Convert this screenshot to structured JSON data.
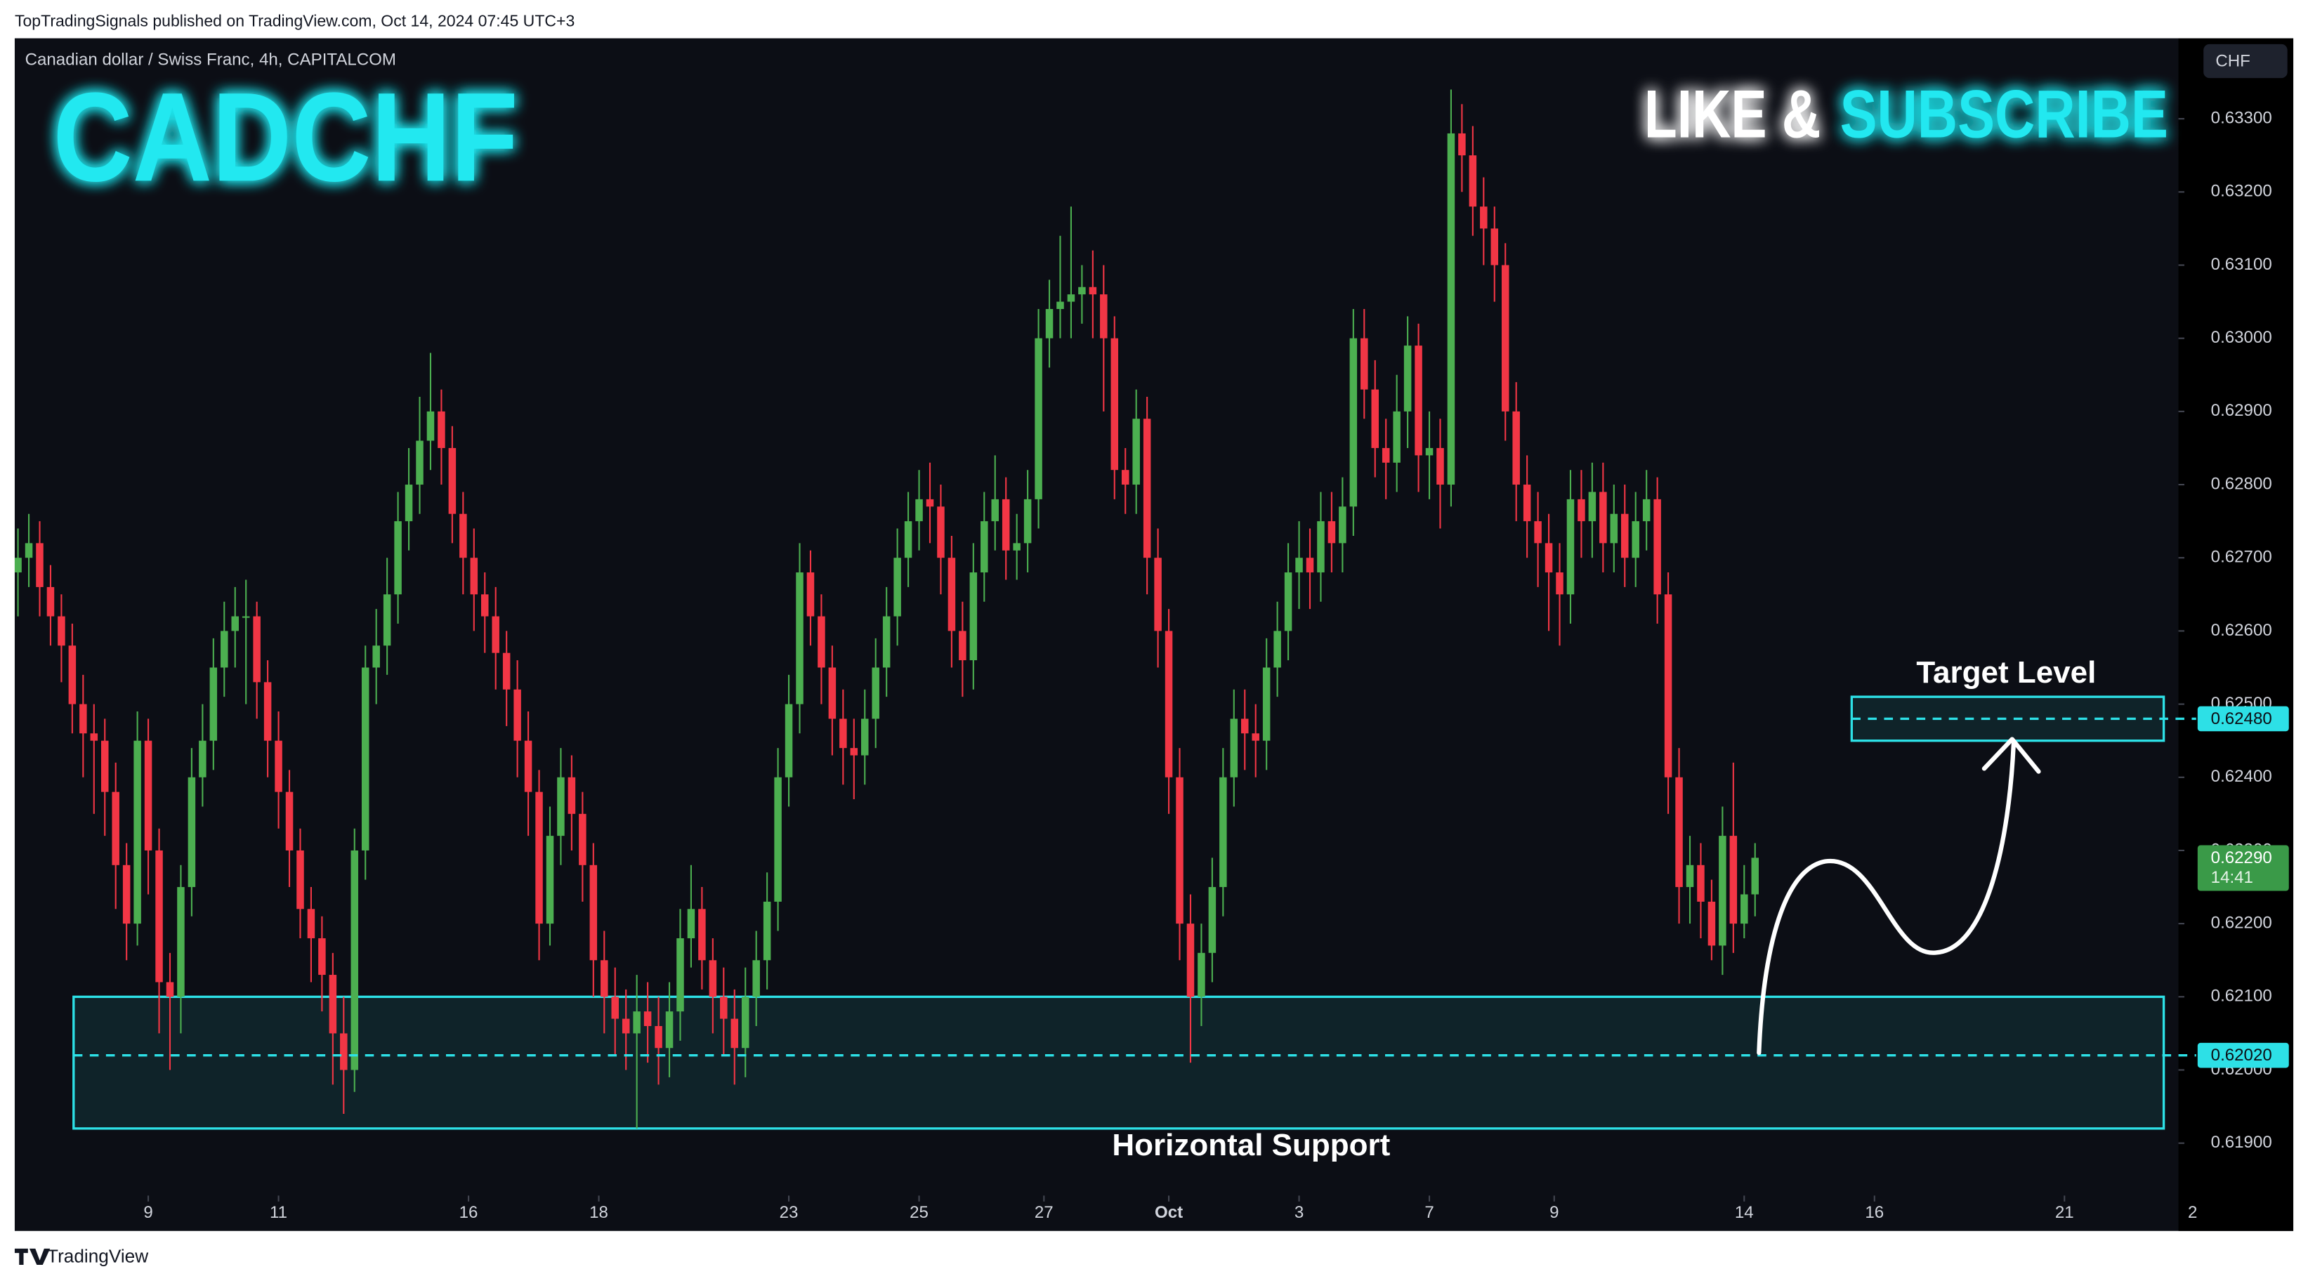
{
  "header": {
    "published": "TopTradingSignals published on TradingView.com, Oct 14, 2024 07:45 UTC+3",
    "footer": "TradingView"
  },
  "chart_data": {
    "type": "candlestick",
    "title": "CADCHF",
    "subtitle": "Canadian dollar / Swiss Franc, 4h, CAPITALCOM",
    "banner": [
      "LIKE &",
      "SUBSCRIBE"
    ],
    "currency": "CHF",
    "up_color": "#4caf50",
    "down_color": "#f23645",
    "zone_color": "#2de0e6",
    "opens": [
      0.6268,
      0.627,
      0.6272,
      0.6266,
      0.6262,
      0.6258,
      0.625,
      0.6246,
      0.6245,
      0.6238,
      0.6228,
      0.622,
      0.6245,
      0.623,
      0.6212,
      0.621,
      0.6225,
      0.624,
      0.6245,
      0.6255,
      0.626,
      0.6262,
      0.6262,
      0.6253,
      0.6245,
      0.6238,
      0.623,
      0.6222,
      0.6218,
      0.6213,
      0.6205,
      0.62,
      0.623,
      0.6255,
      0.6258,
      0.6265,
      0.6275,
      0.628,
      0.6286,
      0.629,
      0.6285,
      0.6276,
      0.627,
      0.6265,
      0.6262,
      0.6257,
      0.6252,
      0.6245,
      0.6238,
      0.622,
      0.6232,
      0.624,
      0.6235,
      0.6228,
      0.6215,
      0.621,
      0.6207,
      0.6205,
      0.6208,
      0.6206,
      0.6203,
      0.6208,
      0.6218,
      0.6222,
      0.6215,
      0.621,
      0.6207,
      0.6203,
      0.621,
      0.6215,
      0.6223,
      0.624,
      0.625,
      0.6268,
      0.6262,
      0.6255,
      0.6248,
      0.6244,
      0.6243,
      0.6248,
      0.6255,
      0.6262,
      0.627,
      0.6275,
      0.6278,
      0.6277,
      0.627,
      0.626,
      0.6256,
      0.6268,
      0.6275,
      0.6278,
      0.6271,
      0.6272,
      0.6278,
      0.63,
      0.6304,
      0.6305,
      0.6306,
      0.6307,
      0.6306,
      0.63,
      0.6282,
      0.628,
      0.6289,
      0.627,
      0.626,
      0.624,
      0.622,
      0.621,
      0.6216,
      0.6225,
      0.624,
      0.6248,
      0.6246,
      0.6245,
      0.6255,
      0.626,
      0.6268,
      0.627,
      0.6268,
      0.6275,
      0.6272,
      0.6277,
      0.63,
      0.6293,
      0.6285,
      0.6283,
      0.629,
      0.6299,
      0.6284,
      0.6285,
      0.628,
      0.6328,
      0.6325,
      0.6318,
      0.6315,
      0.631,
      0.629,
      0.628,
      0.6275,
      0.6272,
      0.6268,
      0.6265,
      0.6278,
      0.6275,
      0.6279,
      0.6272,
      0.6276,
      0.627,
      0.6275,
      0.6278,
      0.6265,
      0.624,
      0.6225,
      0.6228,
      0.6223,
      0.6217,
      0.6232,
      0.622,
      0.6224
    ],
    "highs": [
      0.6274,
      0.6276,
      0.6275,
      0.6269,
      0.6265,
      0.6261,
      0.6254,
      0.625,
      0.6248,
      0.6242,
      0.6231,
      0.6249,
      0.6248,
      0.6233,
      0.6216,
      0.6228,
      0.6244,
      0.625,
      0.6259,
      0.6264,
      0.6266,
      0.6267,
      0.6264,
      0.6256,
      0.6249,
      0.6241,
      0.6233,
      0.6225,
      0.6221,
      0.6216,
      0.621,
      0.6233,
      0.6258,
      0.6263,
      0.627,
      0.6279,
      0.6285,
      0.6292,
      0.6298,
      0.6293,
      0.6288,
      0.6279,
      0.6274,
      0.6268,
      0.6266,
      0.626,
      0.6256,
      0.6249,
      0.6241,
      0.6236,
      0.6244,
      0.6243,
      0.6238,
      0.6231,
      0.6219,
      0.6214,
      0.6211,
      0.6213,
      0.6212,
      0.621,
      0.6212,
      0.6222,
      0.6228,
      0.6225,
      0.6218,
      0.6214,
      0.6211,
      0.6214,
      0.6219,
      0.6227,
      0.6244,
      0.6254,
      0.6272,
      0.6271,
      0.6265,
      0.6258,
      0.6252,
      0.6248,
      0.6252,
      0.6259,
      0.6266,
      0.6274,
      0.6279,
      0.6282,
      0.6283,
      0.628,
      0.6273,
      0.6264,
      0.6272,
      0.6279,
      0.6284,
      0.6281,
      0.6276,
      0.6282,
      0.6304,
      0.6308,
      0.6314,
      0.6318,
      0.631,
      0.6312,
      0.631,
      0.6303,
      0.6285,
      0.6293,
      0.6292,
      0.6274,
      0.6263,
      0.6244,
      0.6224,
      0.622,
      0.6229,
      0.6244,
      0.6252,
      0.6252,
      0.625,
      0.6259,
      0.6264,
      0.6272,
      0.6275,
      0.6274,
      0.6279,
      0.6279,
      0.6281,
      0.6304,
      0.6304,
      0.6297,
      0.6289,
      0.6295,
      0.6303,
      0.6302,
      0.629,
      0.6289,
      0.6334,
      0.6332,
      0.6329,
      0.6322,
      0.6318,
      0.6313,
      0.6294,
      0.6284,
      0.6279,
      0.6276,
      0.6272,
      0.6282,
      0.6282,
      0.6283,
      0.6283,
      0.628,
      0.628,
      0.6279,
      0.6282,
      0.6281,
      0.6268,
      0.6244,
      0.6232,
      0.6231,
      0.6226,
      0.6236,
      0.6242,
      0.6228,
      0.6231
    ],
    "lows": [
      0.6262,
      0.6266,
      0.6262,
      0.6258,
      0.6253,
      0.6246,
      0.624,
      0.6235,
      0.6232,
      0.6222,
      0.6215,
      0.6217,
      0.6224,
      0.6205,
      0.62,
      0.6205,
      0.6221,
      0.6236,
      0.6241,
      0.6251,
      0.6255,
      0.625,
      0.6248,
      0.624,
      0.6233,
      0.6225,
      0.6218,
      0.6212,
      0.6208,
      0.6198,
      0.6194,
      0.6197,
      0.6226,
      0.625,
      0.6254,
      0.6261,
      0.6271,
      0.6276,
      0.6282,
      0.628,
      0.6272,
      0.6265,
      0.626,
      0.6257,
      0.6252,
      0.6247,
      0.624,
      0.6232,
      0.6215,
      0.6217,
      0.6228,
      0.623,
      0.6223,
      0.621,
      0.6205,
      0.6202,
      0.62,
      0.6192,
      0.6201,
      0.6198,
      0.6199,
      0.6204,
      0.6214,
      0.6211,
      0.6205,
      0.6202,
      0.6198,
      0.6199,
      0.6206,
      0.6211,
      0.6219,
      0.6236,
      0.6246,
      0.6258,
      0.625,
      0.6243,
      0.6239,
      0.6237,
      0.6239,
      0.6244,
      0.6251,
      0.6258,
      0.6266,
      0.6271,
      0.6272,
      0.6265,
      0.6255,
      0.6251,
      0.6252,
      0.6264,
      0.6271,
      0.6267,
      0.6267,
      0.6268,
      0.6274,
      0.6296,
      0.63,
      0.63,
      0.6302,
      0.63,
      0.629,
      0.6278,
      0.6276,
      0.6276,
      0.6265,
      0.6255,
      0.6235,
      0.6215,
      0.6201,
      0.6206,
      0.6212,
      0.6221,
      0.6236,
      0.6241,
      0.624,
      0.6241,
      0.6251,
      0.6256,
      0.6263,
      0.6263,
      0.6264,
      0.6268,
      0.6268,
      0.6273,
      0.6289,
      0.6281,
      0.6278,
      0.6279,
      0.6285,
      0.6279,
      0.6278,
      0.6274,
      0.6277,
      0.632,
      0.6314,
      0.631,
      0.6305,
      0.6286,
      0.6275,
      0.627,
      0.6266,
      0.626,
      0.6258,
      0.6261,
      0.627,
      0.627,
      0.6268,
      0.6268,
      0.6266,
      0.6266,
      0.6271,
      0.6261,
      0.6235,
      0.622,
      0.622,
      0.6218,
      0.6215,
      0.6213,
      0.6216,
      0.6218,
      0.6221
    ],
    "closes": [
      0.627,
      0.6272,
      0.6266,
      0.6262,
      0.6258,
      0.625,
      0.6246,
      0.6245,
      0.6238,
      0.6228,
      0.622,
      0.6245,
      0.623,
      0.6212,
      0.621,
      0.6225,
      0.624,
      0.6245,
      0.6255,
      0.626,
      0.6262,
      0.6262,
      0.6253,
      0.6245,
      0.6238,
      0.623,
      0.6222,
      0.6218,
      0.6213,
      0.6205,
      0.62,
      0.623,
      0.6255,
      0.6258,
      0.6265,
      0.6275,
      0.628,
      0.6286,
      0.629,
      0.6285,
      0.6276,
      0.627,
      0.6265,
      0.6262,
      0.6257,
      0.6252,
      0.6245,
      0.6238,
      0.622,
      0.6232,
      0.624,
      0.6235,
      0.6228,
      0.6215,
      0.621,
      0.6207,
      0.6205,
      0.6208,
      0.6206,
      0.6203,
      0.6208,
      0.6218,
      0.6222,
      0.6215,
      0.621,
      0.6207,
      0.6203,
      0.621,
      0.6215,
      0.6223,
      0.624,
      0.625,
      0.6268,
      0.6262,
      0.6255,
      0.6248,
      0.6244,
      0.6243,
      0.6248,
      0.6255,
      0.6262,
      0.627,
      0.6275,
      0.6278,
      0.6277,
      0.627,
      0.626,
      0.6256,
      0.6268,
      0.6275,
      0.6278,
      0.6271,
      0.6272,
      0.6278,
      0.63,
      0.6304,
      0.6305,
      0.6306,
      0.6307,
      0.6306,
      0.63,
      0.6282,
      0.628,
      0.6289,
      0.627,
      0.626,
      0.624,
      0.622,
      0.621,
      0.6216,
      0.6225,
      0.624,
      0.6248,
      0.6246,
      0.6245,
      0.6255,
      0.626,
      0.6268,
      0.627,
      0.6268,
      0.6275,
      0.6272,
      0.6277,
      0.63,
      0.6293,
      0.6285,
      0.6283,
      0.629,
      0.6299,
      0.6284,
      0.6285,
      0.628,
      0.6328,
      0.6325,
      0.6318,
      0.6315,
      0.631,
      0.629,
      0.628,
      0.6275,
      0.6272,
      0.6268,
      0.6265,
      0.6278,
      0.6275,
      0.6279,
      0.6272,
      0.6276,
      0.627,
      0.6275,
      0.6278,
      0.6265,
      0.624,
      0.6225,
      0.6228,
      0.6223,
      0.6217,
      0.6232,
      0.622,
      0.6224,
      0.6229
    ],
    "xlim": [
      -0.3,
      199
    ],
    "xticks": [
      {
        "value": 12,
        "label": "9"
      },
      {
        "value": 24,
        "label": "11"
      },
      {
        "value": 41.5,
        "label": "16"
      },
      {
        "value": 53.5,
        "label": "18"
      },
      {
        "value": 71,
        "label": "23"
      },
      {
        "value": 83,
        "label": "25"
      },
      {
        "value": 94.5,
        "label": "27"
      },
      {
        "value": 106,
        "label": "Oct"
      },
      {
        "value": 118,
        "label": "3"
      },
      {
        "value": 130,
        "label": "7"
      },
      {
        "value": 141.5,
        "label": "9"
      },
      {
        "value": 159,
        "label": "14"
      },
      {
        "value": 171,
        "label": "16"
      },
      {
        "value": 188.5,
        "label": "21"
      },
      {
        "value": 200.3,
        "label": "2"
      }
    ],
    "ylim": [
      0.6178,
      0.6341
    ],
    "yticks": [
      {
        "value": 0.619,
        "label": "0.61900"
      },
      {
        "value": 0.62,
        "label": "0.62000"
      },
      {
        "value": 0.621,
        "label": "0.62100"
      },
      {
        "value": 0.622,
        "label": "0.62200"
      },
      {
        "value": 0.623,
        "label": "0.62300"
      },
      {
        "value": 0.624,
        "label": "0.62400"
      },
      {
        "value": 0.625,
        "label": "0.62500"
      },
      {
        "value": 0.626,
        "label": "0.62600"
      },
      {
        "value": 0.627,
        "label": "0.62700"
      },
      {
        "value": 0.628,
        "label": "0.62800"
      },
      {
        "value": 0.629,
        "label": "0.62900"
      },
      {
        "value": 0.63,
        "label": "0.63000"
      },
      {
        "value": 0.631,
        "label": "0.63100"
      },
      {
        "value": 0.632,
        "label": "0.63200"
      },
      {
        "value": 0.633,
        "label": "0.63300"
      }
    ],
    "zones": [
      {
        "label": "Horizontal Support",
        "top": 0.621,
        "bottom": 0.6192,
        "level": {
          "value": 0.6202,
          "label": "0.62020"
        }
      },
      {
        "label": "Target Level",
        "top": 0.6251,
        "bottom": 0.6245,
        "level": {
          "value": 0.6248,
          "label": "0.62480"
        }
      }
    ],
    "last_price": {
      "value": 0.6229,
      "label": "0.62290",
      "countdown": "14:41"
    }
  }
}
